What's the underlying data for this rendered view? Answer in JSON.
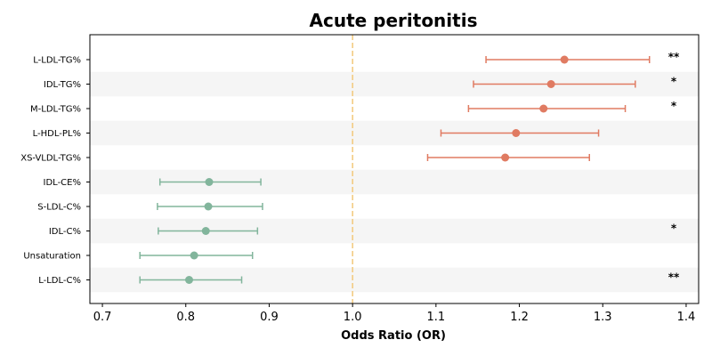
{
  "chart_data": {
    "type": "forest",
    "title": "Acute peritonitis",
    "xlabel": "Odds Ratio (OR)",
    "xlim": [
      0.685,
      1.415
    ],
    "xticks": [
      0.7,
      0.8,
      0.9,
      1.0,
      1.1,
      1.2,
      1.3,
      1.4
    ],
    "xtick_labels": [
      "0.7",
      "0.8",
      "0.9",
      "1.0",
      "1.1",
      "1.2",
      "1.3",
      "1.4"
    ],
    "reference_line": 1.0,
    "colors": {
      "positive": "#e07b62",
      "negative": "#82b59c",
      "reference": "#f2c87a",
      "band": "#f5f5f5"
    },
    "rows": [
      {
        "label": "L-LDL-TG%",
        "or": 1.254,
        "lower": 1.16,
        "upper": 1.356,
        "sig": "**"
      },
      {
        "label": "IDL-TG%",
        "or": 1.238,
        "lower": 1.145,
        "upper": 1.339,
        "sig": "*"
      },
      {
        "label": "M-LDL-TG%",
        "or": 1.229,
        "lower": 1.139,
        "upper": 1.327,
        "sig": "*"
      },
      {
        "label": "L-HDL-PL%",
        "or": 1.196,
        "lower": 1.106,
        "upper": 1.295,
        "sig": ""
      },
      {
        "label": "XS-VLDL-TG%",
        "or": 1.183,
        "lower": 1.09,
        "upper": 1.284,
        "sig": ""
      },
      {
        "label": "IDL-CE%",
        "or": 0.828,
        "lower": 0.769,
        "upper": 0.89,
        "sig": ""
      },
      {
        "label": "S-LDL-C%",
        "or": 0.827,
        "lower": 0.766,
        "upper": 0.892,
        "sig": ""
      },
      {
        "label": "IDL-C%",
        "or": 0.824,
        "lower": 0.767,
        "upper": 0.886,
        "sig": "*"
      },
      {
        "label": "Unsaturation",
        "or": 0.81,
        "lower": 0.745,
        "upper": 0.88,
        "sig": ""
      },
      {
        "label": "L-LDL-C%",
        "or": 0.804,
        "lower": 0.745,
        "upper": 0.867,
        "sig": "**"
      }
    ]
  }
}
